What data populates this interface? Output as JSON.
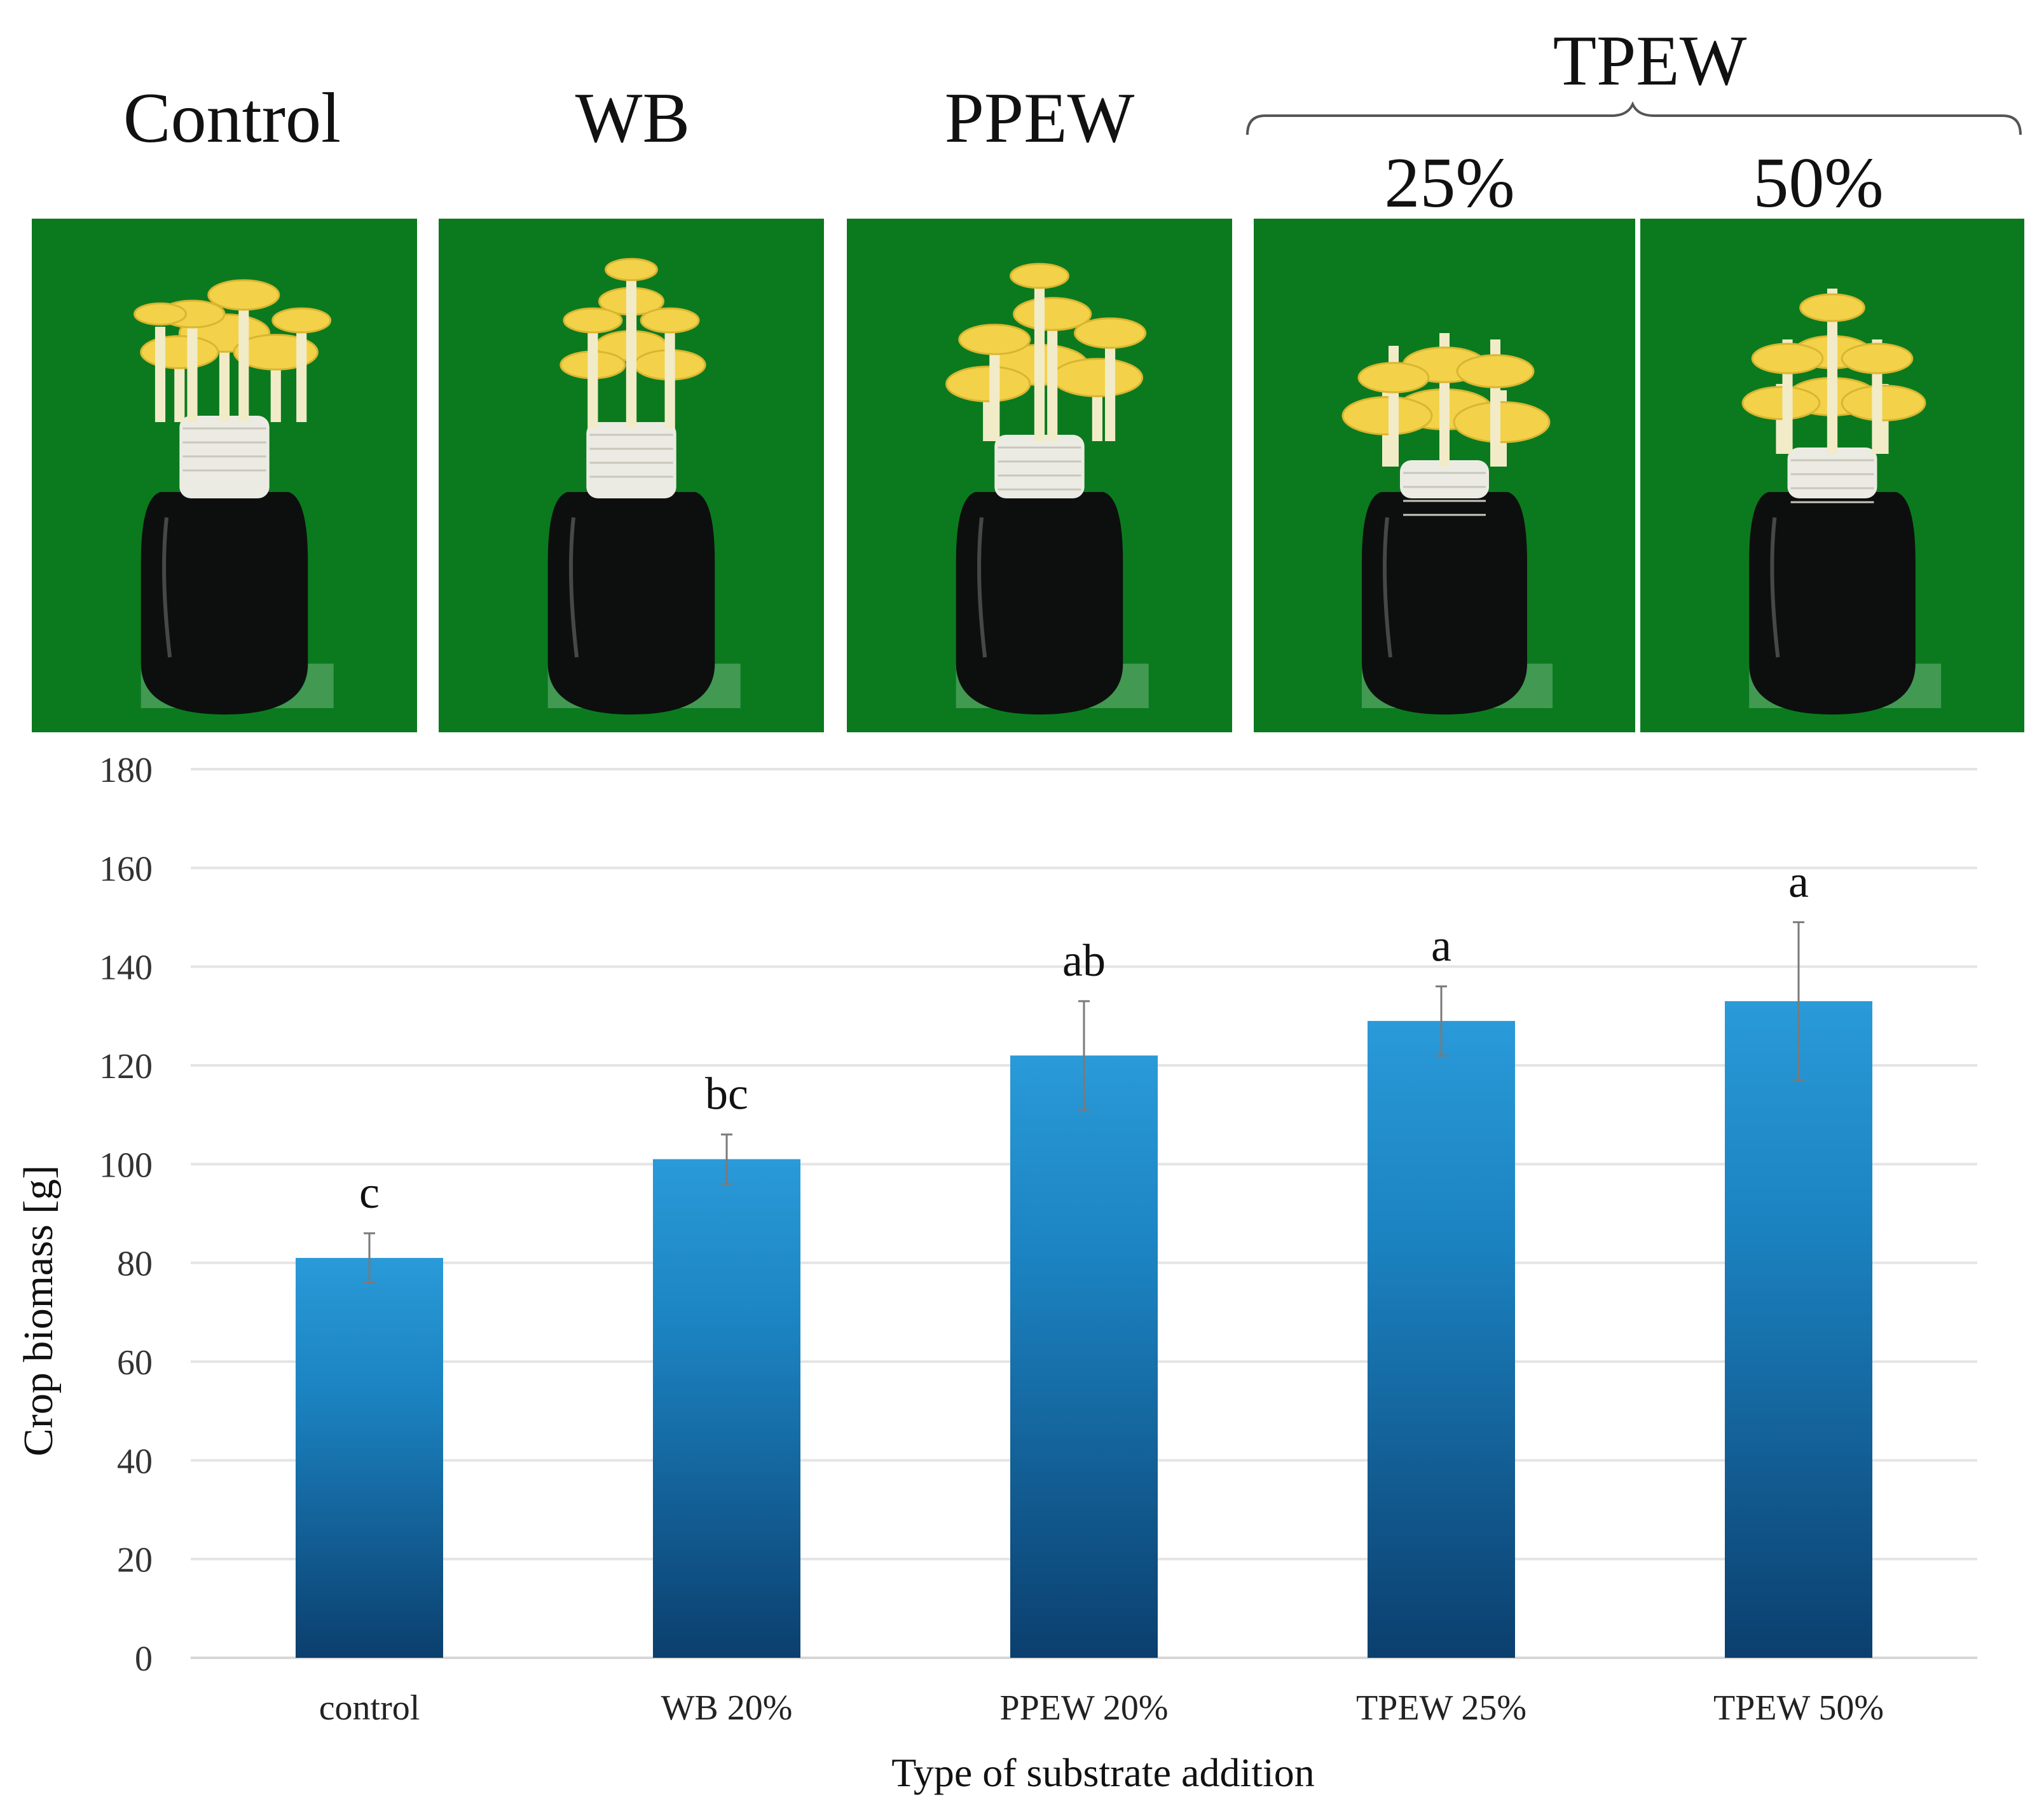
{
  "photos": {
    "group_label": "TPEW",
    "labels": [
      "Control",
      "WB",
      "PPEW",
      "25%",
      "50%"
    ],
    "mushroom_color": "#f3d24a",
    "background_color": "#0b7a1e",
    "container_color": "#0d0f0e"
  },
  "chart_data": {
    "type": "bar",
    "title": "",
    "xlabel": "Type of substrate addition",
    "ylabel": "Crop biomass [g]",
    "categories": [
      "control",
      "WB 20%",
      "PPEW 20%",
      "TPEW 25%",
      "TPEW 50%"
    ],
    "values": [
      81,
      101,
      122,
      129,
      133
    ],
    "errors": [
      5,
      5,
      11,
      7,
      16
    ],
    "significance_letters": [
      "c",
      "bc",
      "ab",
      "a",
      "a"
    ],
    "ylim": [
      0,
      180
    ],
    "yticks": [
      0,
      20,
      40,
      60,
      80,
      100,
      120,
      140,
      160,
      180
    ],
    "grid": true,
    "bar_color_top": "#2a9ad8",
    "bar_color_bottom": "#0b3f6e"
  }
}
